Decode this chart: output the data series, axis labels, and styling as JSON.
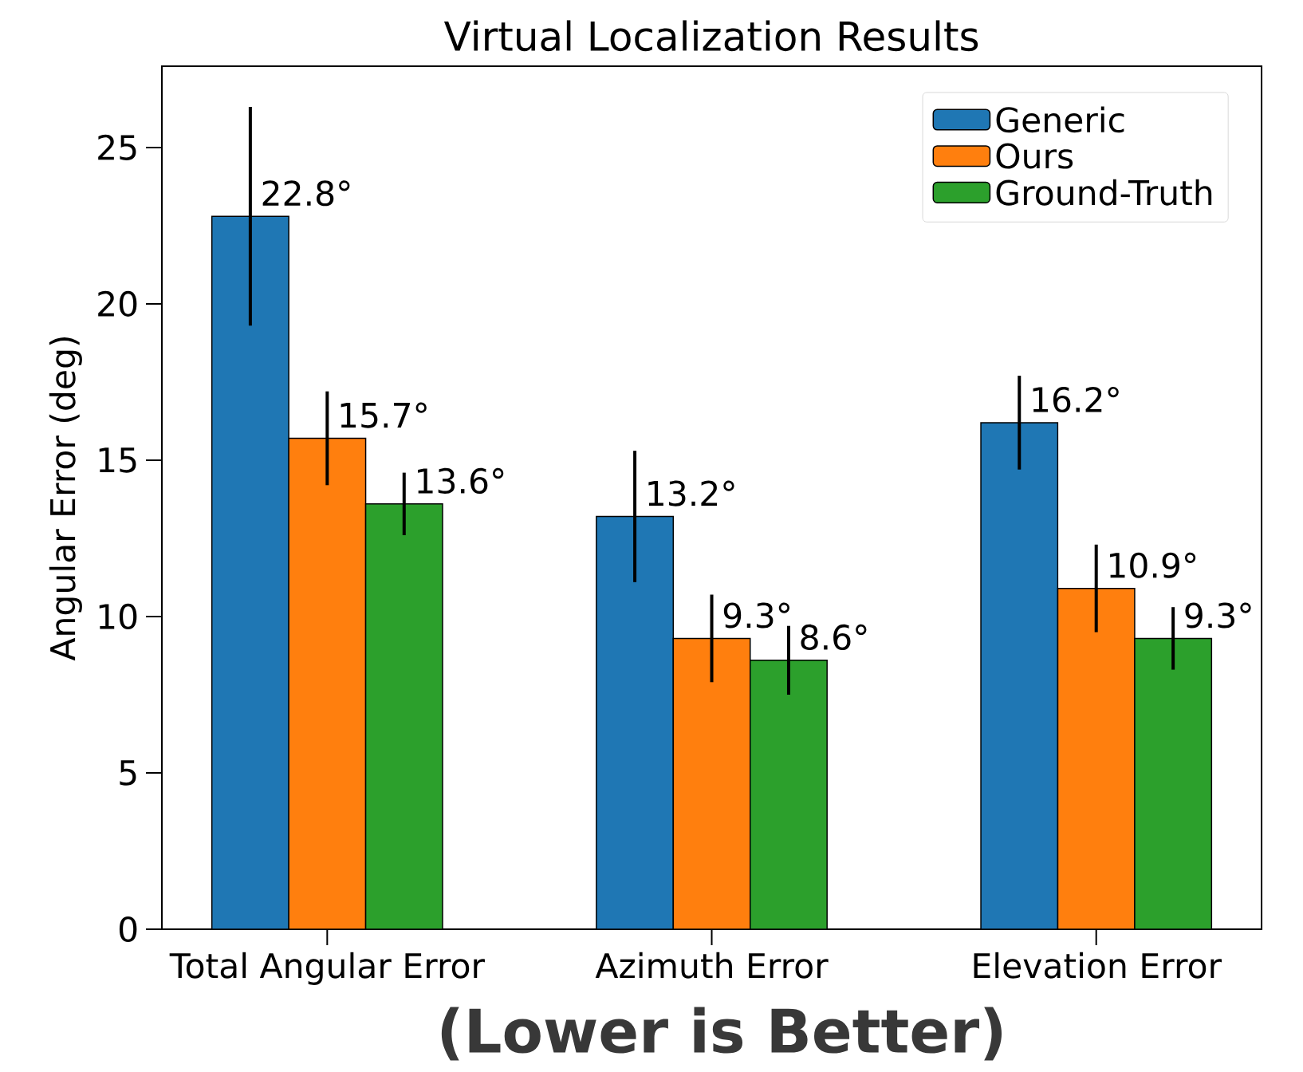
{
  "chart_data": {
    "type": "bar",
    "title": "Virtual Localization Results",
    "ylabel": "Angular Error (deg)",
    "categories": [
      "Total Angular Error",
      "Azimuth Error",
      "Elevation Error"
    ],
    "series": [
      {
        "name": "Generic",
        "color": "#1f77b4",
        "values": [
          22.8,
          13.2,
          16.2
        ],
        "errors": [
          3.5,
          2.1,
          1.5
        ],
        "value_labels": [
          "22.8°",
          "13.2°",
          "16.2°"
        ]
      },
      {
        "name": "Ours",
        "color": "#ff7f0e",
        "values": [
          15.7,
          9.3,
          10.9
        ],
        "errors": [
          1.5,
          1.4,
          1.4
        ],
        "value_labels": [
          "15.7°",
          "9.3°",
          "10.9°"
        ]
      },
      {
        "name": "Ground-Truth",
        "color": "#2ca02c",
        "values": [
          13.6,
          8.6,
          9.3
        ],
        "errors": [
          1.0,
          1.1,
          1.0
        ],
        "value_labels": [
          "13.6°",
          "8.6°",
          "9.3°"
        ]
      }
    ],
    "ylim": [
      0,
      27.6
    ],
    "yticks": [
      0,
      5,
      10,
      15,
      20,
      25
    ],
    "legend": "top right",
    "annotations": [
      "(Lower is Better)"
    ]
  }
}
